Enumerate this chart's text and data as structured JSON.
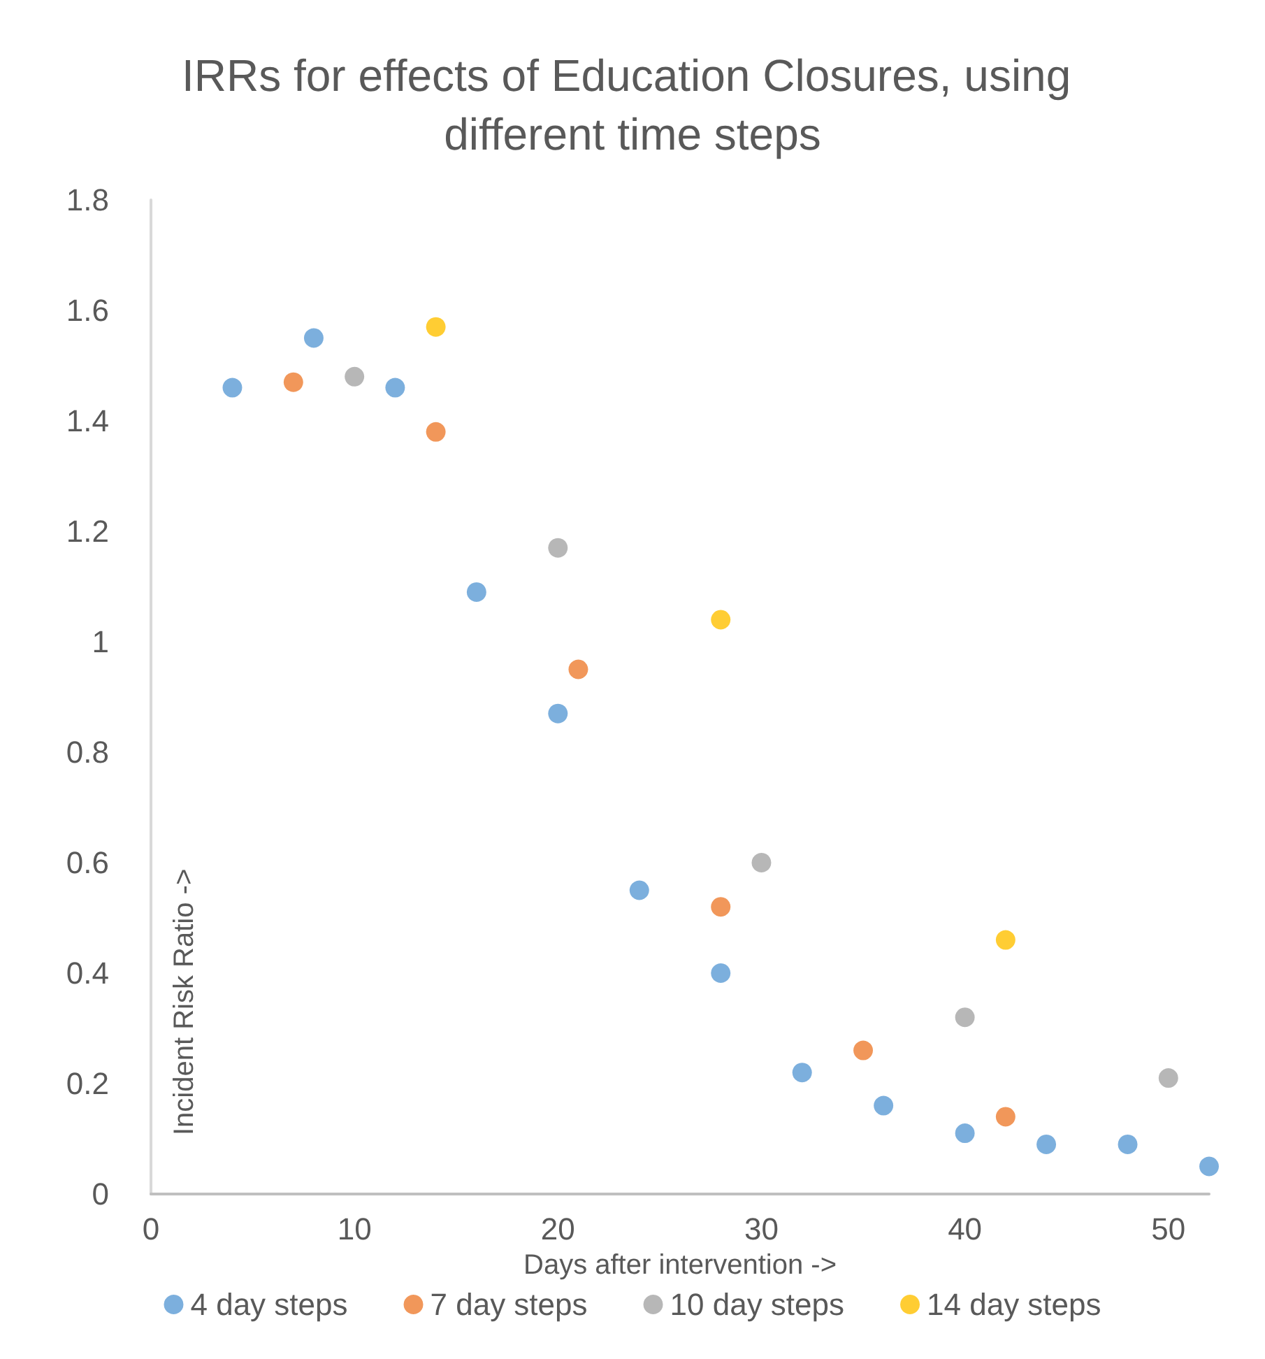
{
  "chart_data": {
    "type": "scatter",
    "title": "IRRs for effects of Education Closures, using different time steps",
    "xlabel": "Days after intervention ->",
    "ylabel": "Incident Risk Ratio ->",
    "series": [
      {
        "name": "4 day steps",
        "color": "#5b9bd5",
        "x": [
          4,
          8,
          12,
          16,
          20,
          24,
          28,
          32,
          36,
          40,
          44,
          48,
          52
        ],
        "values": [
          1.46,
          1.55,
          1.46,
          1.09,
          0.87,
          0.55,
          0.4,
          0.22,
          0.16,
          0.11,
          0.09,
          0.09,
          0.05
        ]
      },
      {
        "name": "7 day steps",
        "color": "#ed7d31",
        "x": [
          7,
          14,
          21,
          28,
          35,
          42
        ],
        "values": [
          1.47,
          1.38,
          0.95,
          0.52,
          0.26,
          0.14
        ]
      },
      {
        "name": "10 day steps",
        "color": "#a5a5a5",
        "x": [
          10,
          20,
          30,
          40,
          50
        ],
        "values": [
          1.48,
          1.17,
          0.6,
          0.32,
          0.21
        ]
      },
      {
        "name": "14 day steps",
        "color": "#ffc000",
        "x": [
          14,
          28,
          42
        ],
        "values": [
          1.57,
          1.04,
          0.46
        ]
      }
    ],
    "xlim": [
      0,
      52
    ],
    "xticks": [
      0,
      10,
      20,
      30,
      40,
      50
    ],
    "ylim": [
      0,
      1.8
    ],
    "yticks": [
      0,
      0.2,
      0.4,
      0.6,
      0.8,
      1,
      1.2,
      1.4,
      1.6,
      1.8
    ],
    "grid": false,
    "legend": "bottom",
    "marker": "circle"
  }
}
